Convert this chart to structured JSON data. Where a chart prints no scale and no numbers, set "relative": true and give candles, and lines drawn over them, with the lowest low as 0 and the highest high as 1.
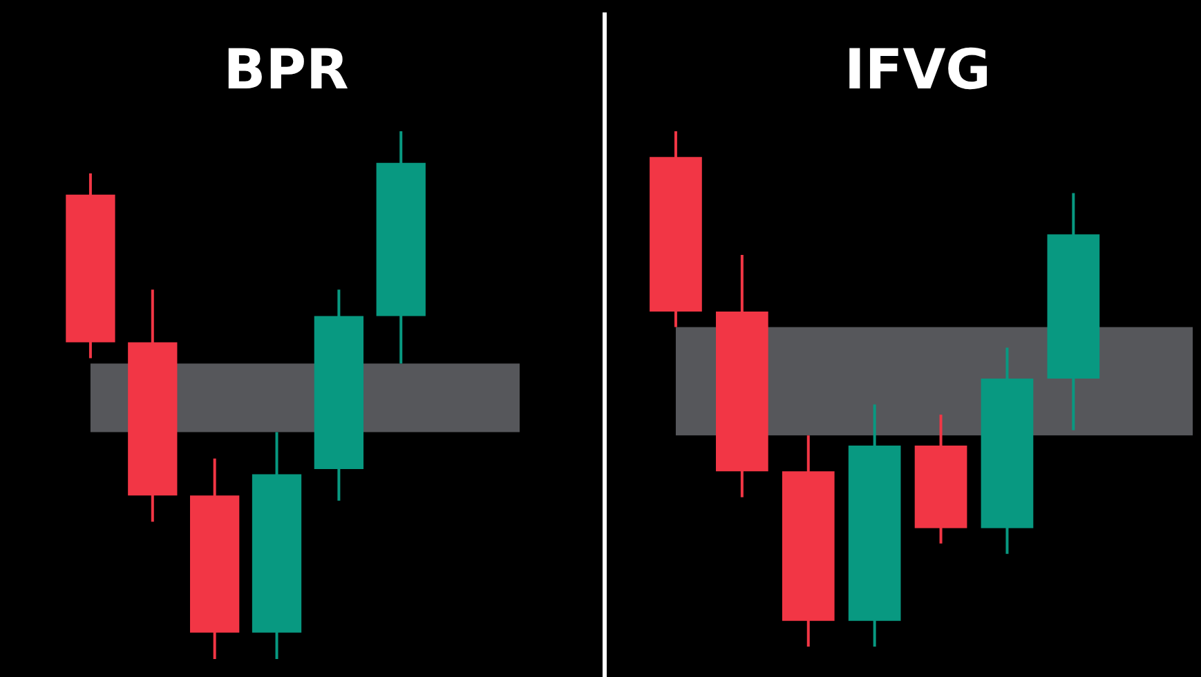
{
  "chart_data": [
    {
      "type": "candlestick",
      "title": "BPR",
      "relative": true,
      "categories": [
        null,
        null,
        null,
        null,
        null,
        null
      ],
      "ohlc": [
        [
          0.88,
          0.92,
          0.57,
          0.6
        ],
        [
          0.6,
          0.7,
          0.26,
          0.31
        ],
        [
          0.31,
          0.38,
          0,
          0.05
        ],
        [
          0.05,
          0.43,
          0,
          0.35
        ],
        [
          0.36,
          0.7,
          0.3,
          0.65
        ],
        [
          0.65,
          1,
          0.56,
          0.94
        ]
      ],
      "colors": [
        "#f23645",
        "#f23645",
        "#f23645",
        "#089981",
        "#089981",
        "#089981"
      ],
      "bands": [
        {
          "axis": "y",
          "from": 0.43,
          "to": 0.56,
          "color": "#d1d4dc"
        }
      ]
    },
    {
      "type": "candlestick",
      "title": "IFVG",
      "relative": true,
      "categories": [
        null,
        null,
        null,
        null,
        null,
        null,
        null
      ],
      "ohlc": [
        [
          0.95,
          1,
          0.62,
          0.65
        ],
        [
          0.65,
          0.76,
          0.29,
          0.34
        ],
        [
          0.34,
          0.41,
          0,
          0.05
        ],
        [
          0.05,
          0.47,
          0,
          0.39
        ],
        [
          0.39,
          0.45,
          0.2,
          0.23
        ],
        [
          0.23,
          0.58,
          0.18,
          0.52
        ],
        [
          0.52,
          0.88,
          0.42,
          0.8
        ]
      ],
      "colors": [
        "#f23645",
        "#f23645",
        "#f23645",
        "#089981",
        "#f23645",
        "#089981",
        "#089981"
      ],
      "bands": [
        {
          "axis": "y",
          "from": 0.41,
          "to": 0.62,
          "color": "#d1d4dc"
        }
      ]
    }
  ]
}
